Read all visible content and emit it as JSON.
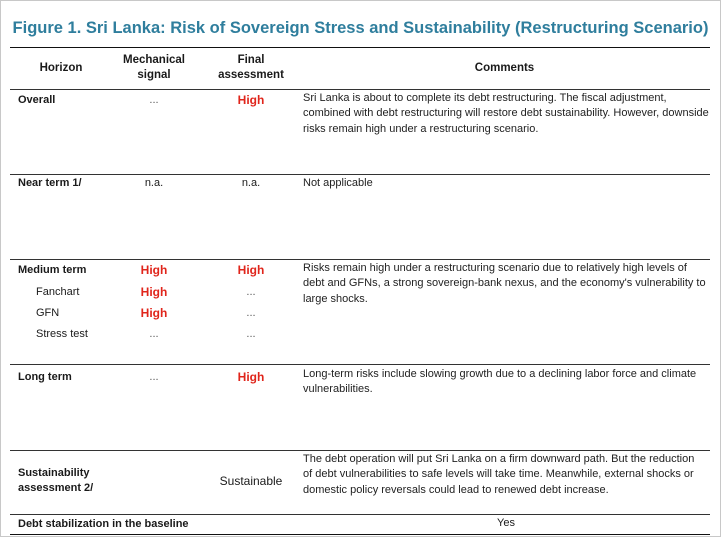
{
  "title": "Figure 1. Sri Lanka: Risk of Sovereign Stress and Sustainability (Restructuring Scenario)",
  "headers": {
    "horizon": "Horizon",
    "mechanical": "Mechanical signal",
    "final": "Final assessment",
    "comments": "Comments"
  },
  "rows": {
    "overall": {
      "label": "Overall",
      "mechanical": "...",
      "final": "High",
      "comment": "Sri Lanka is about to complete its debt restructuring. The fiscal adjustment, combined with debt restructuring will restore debt sustainability. However, downside risks remain high under a restructuring scenario."
    },
    "near_term": {
      "label": "Near term 1/",
      "mechanical": "n.a.",
      "final": "n.a.",
      "comment": "Not applicable"
    },
    "medium_term": {
      "label": "Medium term",
      "mechanical": "High",
      "final": "High",
      "comment": "Risks remain high under a restructuring scenario due to relatively high levels of debt and GFNs, a strong sovereign-bank nexus, and the economy's vulnerability to large shocks.",
      "subrows": [
        {
          "label": "Fanchart",
          "mechanical": "High",
          "final": "..."
        },
        {
          "label": "GFN",
          "mechanical": "High",
          "final": "..."
        },
        {
          "label": "Stress test",
          "mechanical": "...",
          "final": "..."
        }
      ]
    },
    "long_term": {
      "label": "Long term",
      "mechanical": "...",
      "final": "High",
      "comment": "Long-term risks include slowing growth due to a declining labor force and climate vulnerabilities."
    },
    "sustainability": {
      "label": "Sustainability assessment 2/",
      "final": "Sustainable",
      "comment": "The debt operation will put Sri Lanka on a firm downward path. But the reduction of debt vulnerabilities to safe levels will take time. Meanwhile, external shocks or domestic policy reversals could lead to renewed debt increase."
    },
    "debt_stabilization": {
      "label": "Debt stabilization in the baseline",
      "value": "Yes"
    }
  },
  "colors": {
    "title": "#2f7e9d",
    "high": "#e0251b"
  }
}
